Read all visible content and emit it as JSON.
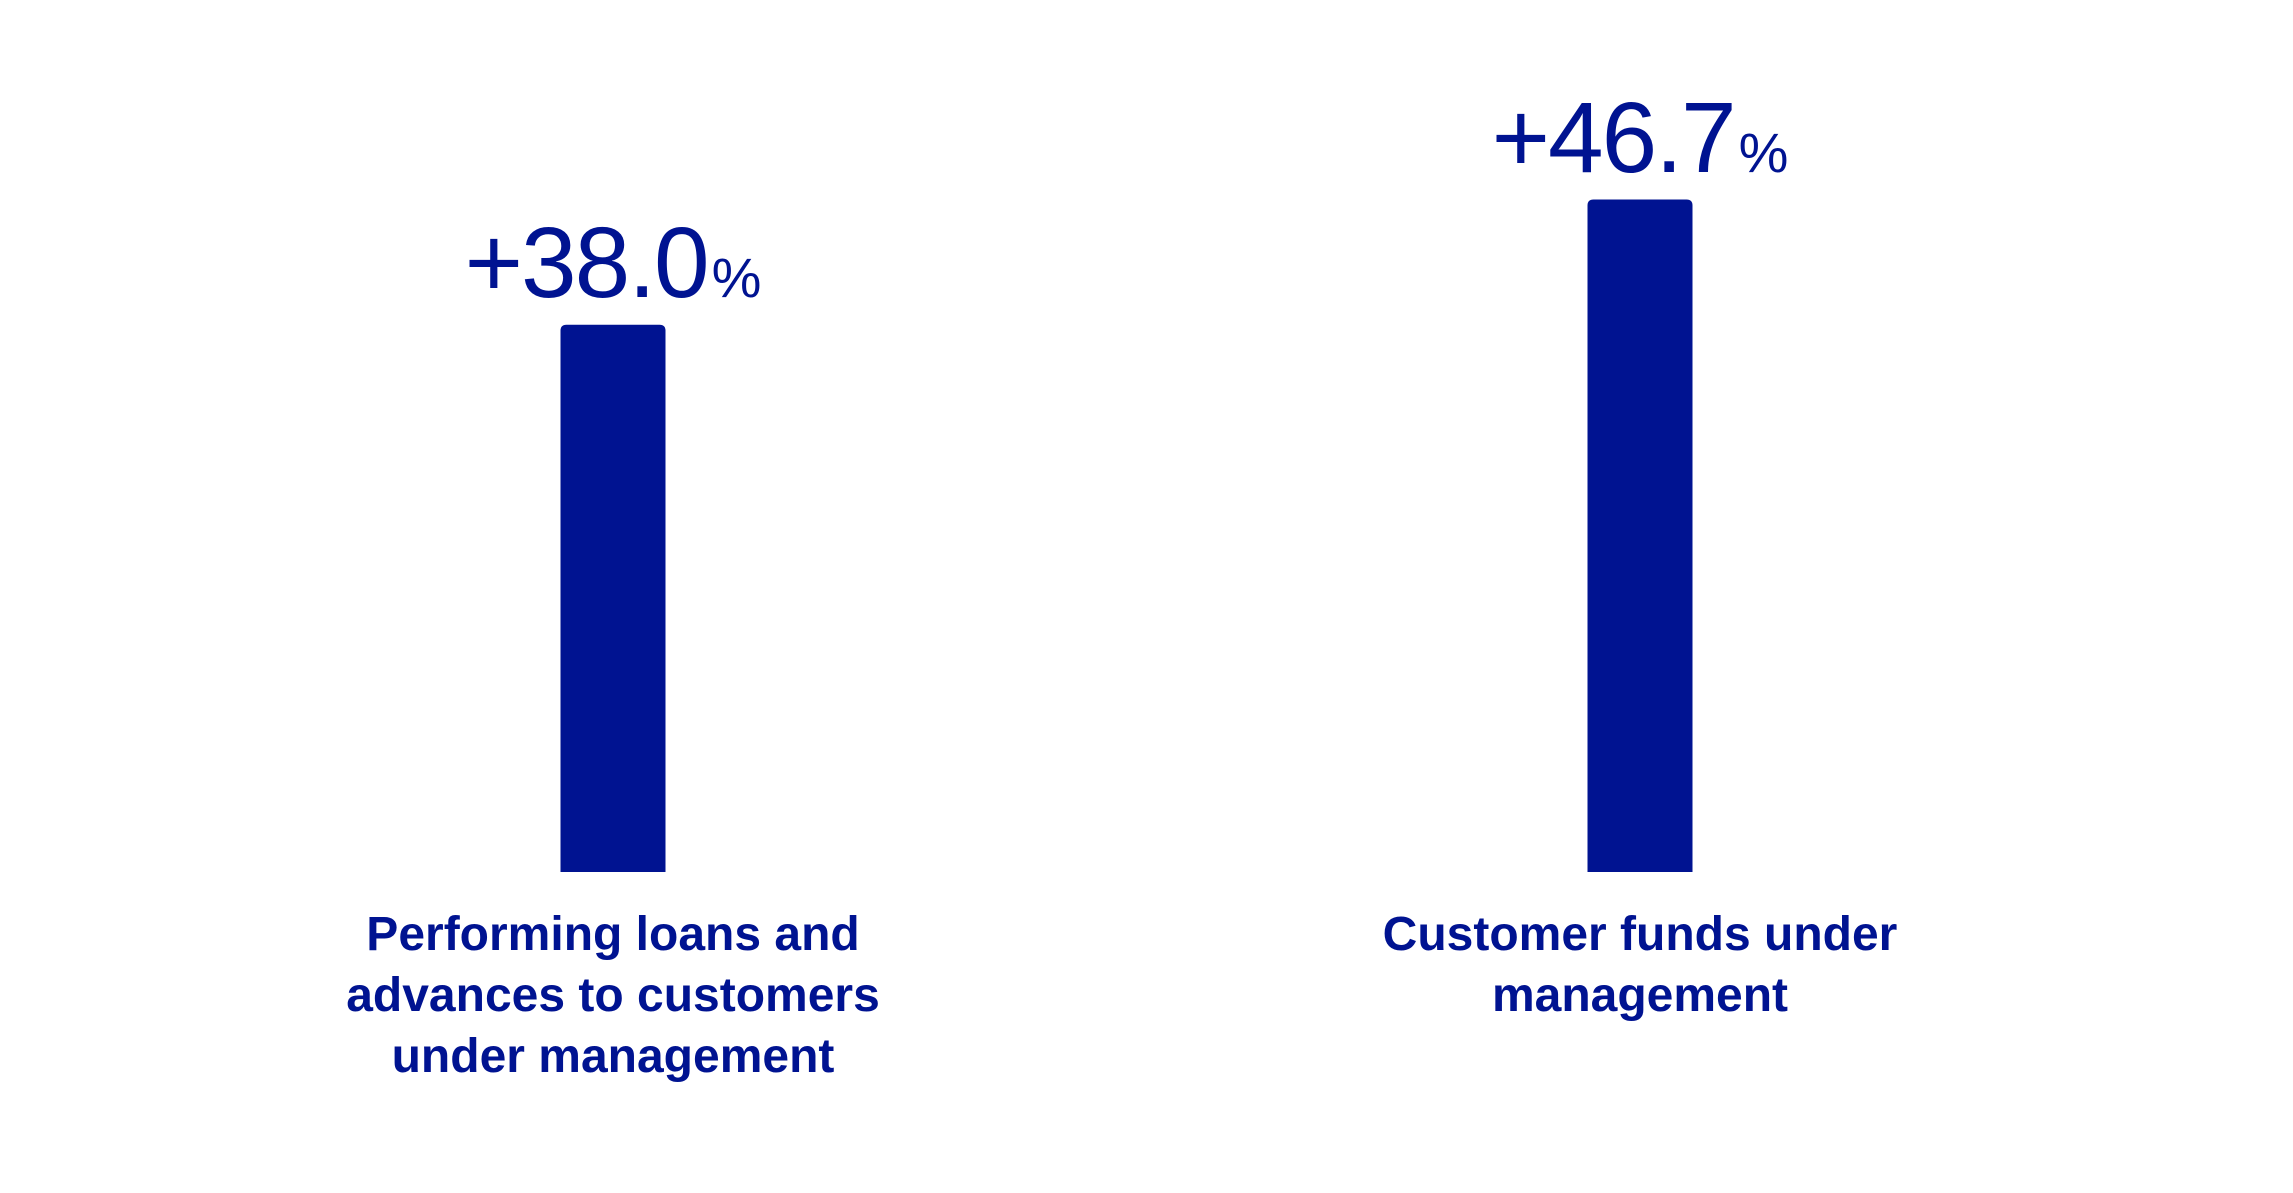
{
  "chart_data": {
    "type": "bar",
    "categories": [
      "Performing loans and advances to customers under management",
      "Customer funds under management"
    ],
    "category_lines": [
      [
        "Performing loans and",
        "advances to customers",
        "under management"
      ],
      [
        "Customer funds under",
        "management"
      ]
    ],
    "values": [
      38.0,
      46.7
    ],
    "value_labels": [
      {
        "number": "+38.0",
        "unit": "%"
      },
      {
        "number": "+46.7",
        "unit": "%"
      }
    ],
    "title": "",
    "xlabel": "",
    "ylabel": "",
    "ylim": [
      0,
      50
    ],
    "grid": false,
    "legend": "none"
  },
  "colors": {
    "bar": "#001391",
    "text": "#001391",
    "background": "#ffffff"
  }
}
